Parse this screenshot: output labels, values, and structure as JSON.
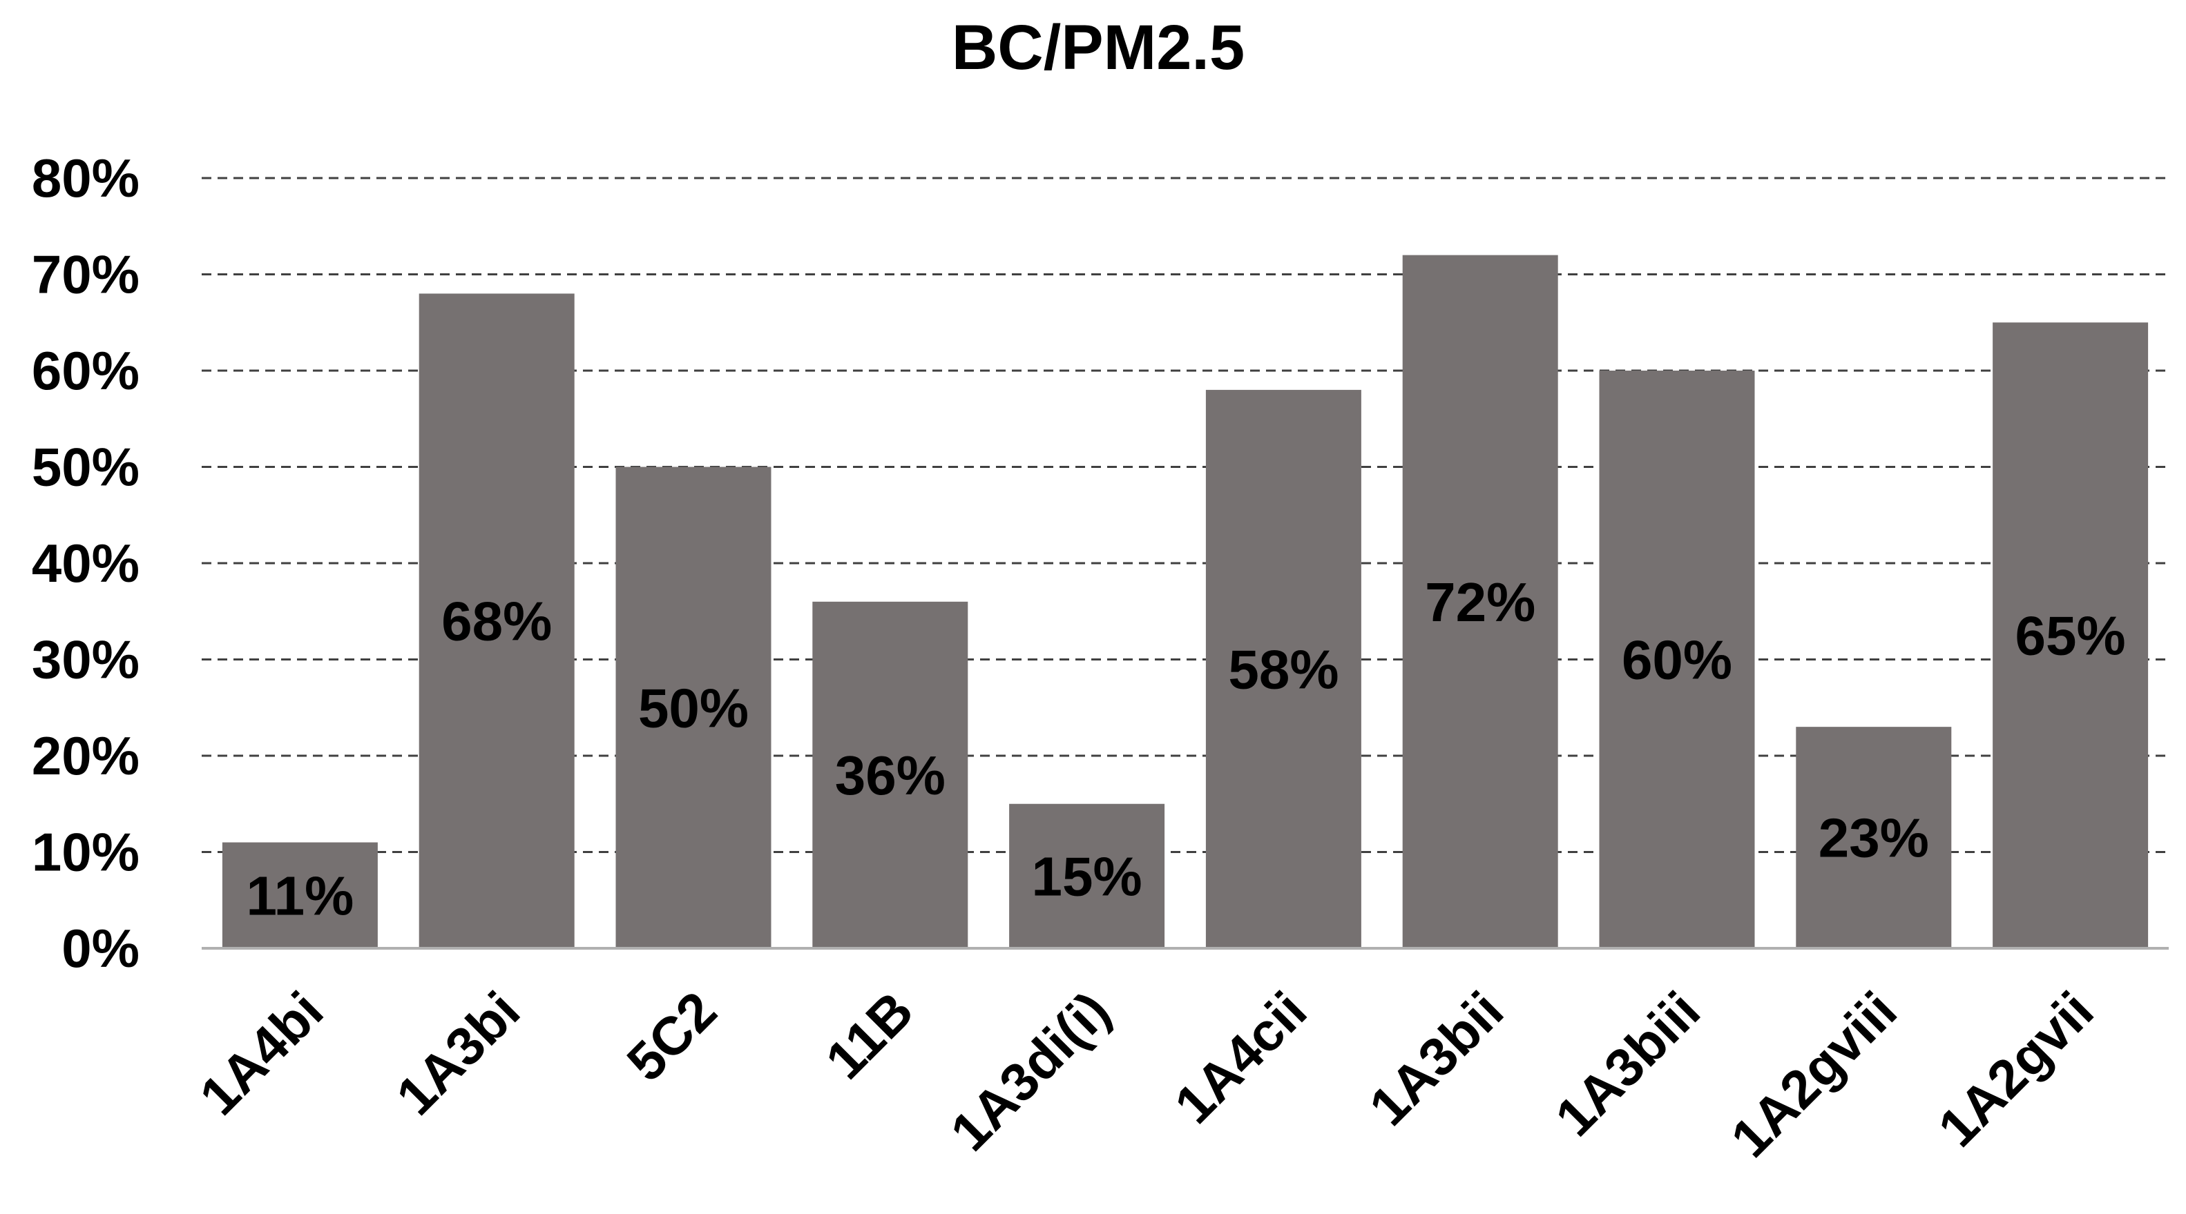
{
  "chart_data": {
    "type": "bar",
    "title": "BC/PM2.5",
    "xlabel": "",
    "ylabel": "",
    "categories": [
      "1A4bi",
      "1A3bi",
      "5C2",
      "11B",
      "1A3di(i)",
      "1A4cii",
      "1A3bii",
      "1A3biii",
      "1A2gviii",
      "1A2gvii"
    ],
    "values": [
      11,
      68,
      50,
      36,
      15,
      58,
      72,
      60,
      23,
      65
    ],
    "data_labels": [
      "11%",
      "68%",
      "50%",
      "36%",
      "15%",
      "58%",
      "72%",
      "60%",
      "23%",
      "65%"
    ],
    "y_ticks": [
      "0%",
      "10%",
      "20%",
      "30%",
      "40%",
      "50%",
      "60%",
      "70%",
      "80%"
    ],
    "ylim": [
      0,
      80
    ],
    "grid": true,
    "grid_style": "dashed",
    "legend": "none",
    "colors": {
      "bar": "#767171",
      "grid": "#404040",
      "text": "#000000"
    }
  }
}
